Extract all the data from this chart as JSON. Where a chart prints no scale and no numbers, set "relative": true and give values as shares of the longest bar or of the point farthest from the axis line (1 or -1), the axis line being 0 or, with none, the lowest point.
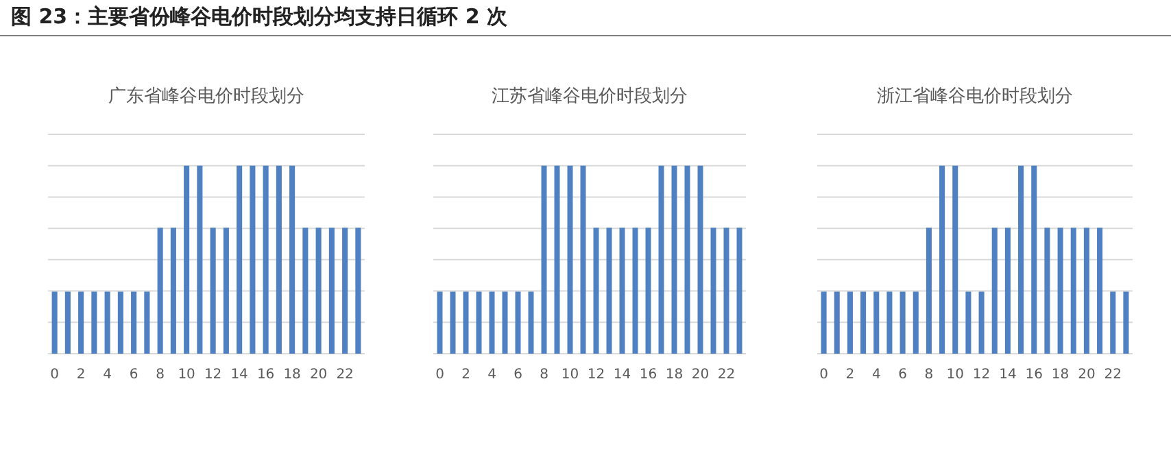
{
  "chart_data": [
    {
      "type": "other",
      "title": "图 23：主要省份峰谷电价时段划分均支持日循环 2 次"
    },
    {
      "type": "bar",
      "title": "广东省峰谷电价时段划分",
      "relative": true,
      "grid": "y",
      "color": "#4f81c2",
      "categories": [
        "0",
        null,
        "2",
        null,
        "4",
        null,
        "6",
        null,
        "8",
        null,
        "10",
        null,
        "12",
        null,
        "14",
        null,
        "16",
        null,
        "18",
        null,
        "20",
        null,
        "22",
        null
      ],
      "values": [
        0.33,
        0.33,
        0.33,
        0.33,
        0.33,
        0.33,
        0.33,
        0.33,
        0.67,
        0.67,
        1,
        1,
        0.67,
        0.67,
        1,
        1,
        1,
        1,
        1,
        0.67,
        0.67,
        0.67,
        0.67,
        0.67
      ]
    },
    {
      "type": "bar",
      "title": "江苏省峰谷电价时段划分",
      "relative": true,
      "grid": "y",
      "color": "#4f81c2",
      "categories": [
        "0",
        null,
        "2",
        null,
        "4",
        null,
        "6",
        null,
        "8",
        null,
        "10",
        null,
        "12",
        null,
        "14",
        null,
        "16",
        null,
        "18",
        null,
        "20",
        null,
        "22",
        null
      ],
      "values": [
        0.33,
        0.33,
        0.33,
        0.33,
        0.33,
        0.33,
        0.33,
        0.33,
        1,
        1,
        1,
        1,
        0.67,
        0.67,
        0.67,
        0.67,
        0.67,
        1,
        1,
        1,
        1,
        0.67,
        0.67,
        0.67
      ]
    },
    {
      "type": "bar",
      "title": "浙江省峰谷电价时段划分",
      "relative": true,
      "grid": "y",
      "color": "#4f81c2",
      "categories": [
        "0",
        null,
        "2",
        null,
        "4",
        null,
        "6",
        null,
        "8",
        null,
        "10",
        null,
        "12",
        null,
        "14",
        null,
        "16",
        null,
        "18",
        null,
        "20",
        null,
        "22",
        null
      ],
      "values": [
        0.33,
        0.33,
        0.33,
        0.33,
        0.33,
        0.33,
        0.33,
        0.33,
        0.67,
        1,
        1,
        0.33,
        0.33,
        0.67,
        0.67,
        1,
        1,
        0.67,
        0.67,
        0.67,
        0.67,
        0.67,
        0.33,
        0.33
      ]
    }
  ]
}
